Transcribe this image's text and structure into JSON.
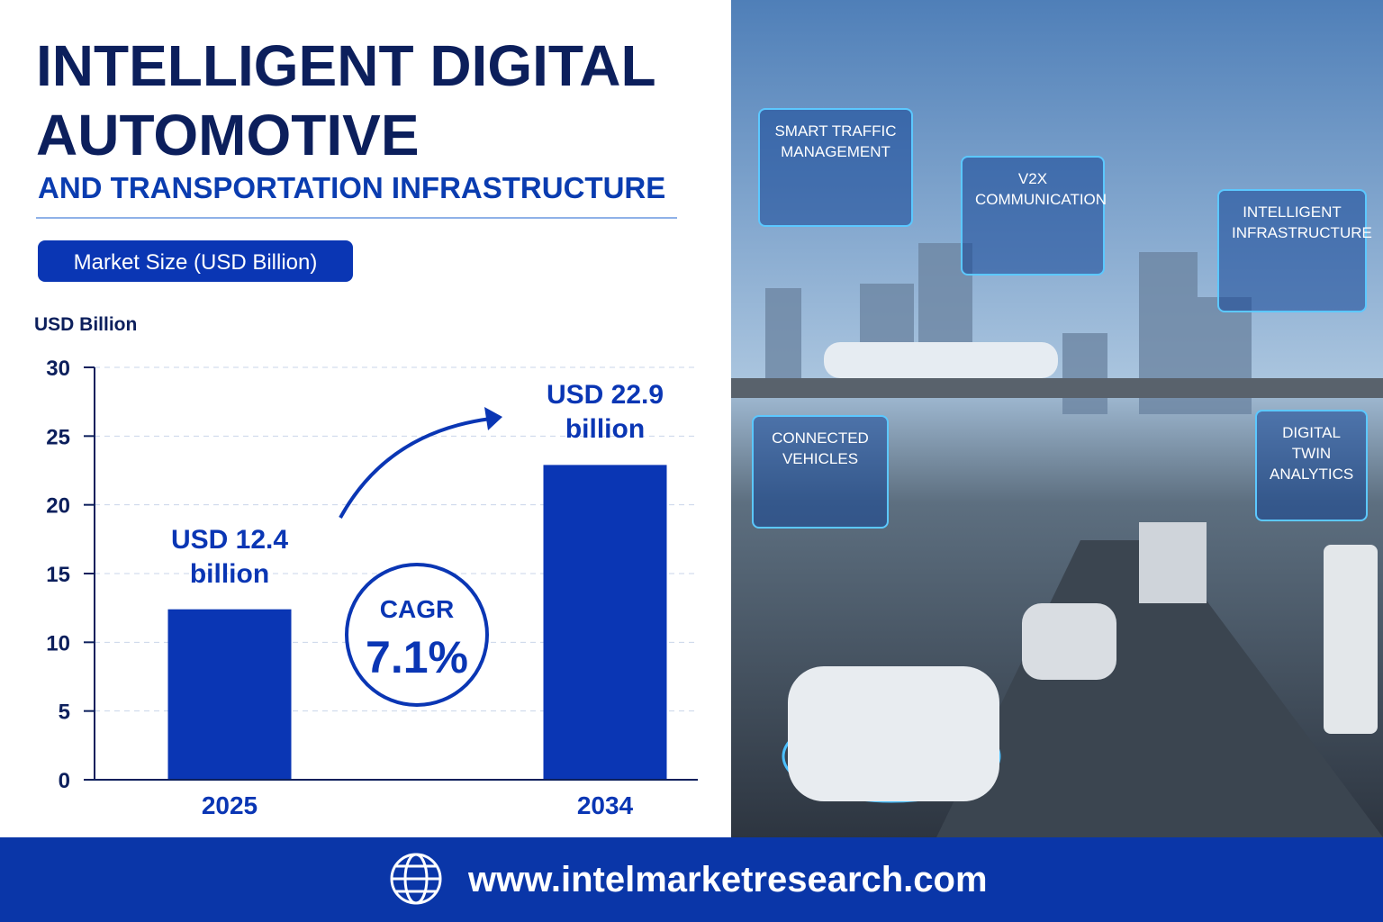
{
  "header": {
    "title_line1": "INTELLIGENT DIGITAL",
    "title_line2": "AUTOMOTIVE",
    "subtitle": "AND TRANSPORTATION INFRASTRUCTURE",
    "badge": "Market Size (USD Billion)"
  },
  "chart_data": {
    "type": "bar",
    "y_label": "USD Billion",
    "categories": [
      "2025",
      "2034"
    ],
    "values": [
      12.4,
      22.9
    ],
    "value_labels": [
      "USD 12.4 billion",
      "USD 22.9 billion"
    ],
    "color": "#0a36b4",
    "ylim": [
      0,
      30
    ],
    "yticks": [
      0,
      5,
      10,
      15,
      20,
      25,
      30
    ],
    "grid": true
  },
  "cagr": {
    "label": "CAGR",
    "value": "7.1%"
  },
  "callouts": [
    "SMART TRAFFIC MANAGEMENT",
    "V2X COMMUNICATION",
    "INTELLIGENT INFRASTRUCTURE",
    "CONNECTED VEHICLES",
    "DIGITAL TWIN ANALYTICS"
  ],
  "footer": {
    "url": "www.intelmarketresearch.com"
  }
}
